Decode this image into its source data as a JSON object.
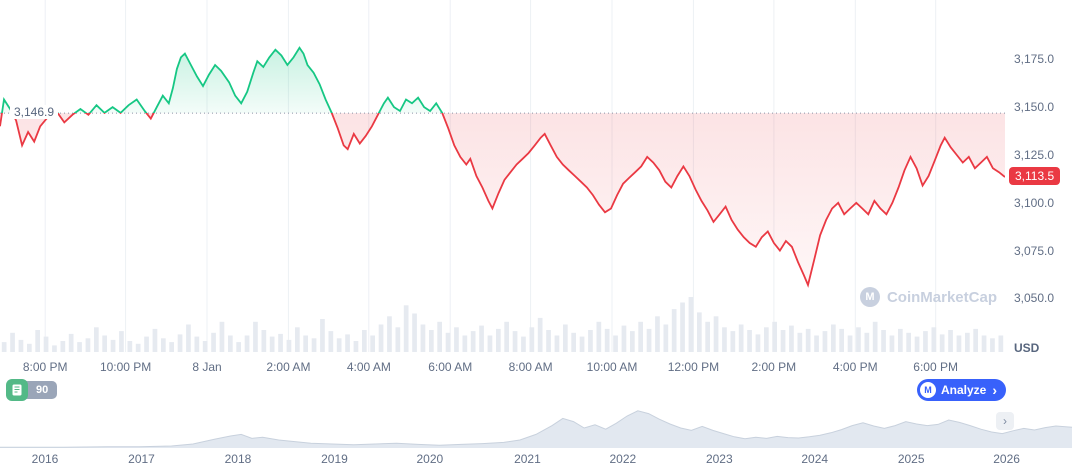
{
  "branding": {
    "watermark": "CoinMarketCap",
    "logo_letter": "M"
  },
  "toolbar": {
    "badge_count": "90",
    "analyze_label": "Analyze",
    "chevron": "›",
    "expand_glyph": "›"
  },
  "chart_data": {
    "type": "line",
    "title": "",
    "unit_label": "USD",
    "baseline": 3146.9,
    "baseline_label": "3,146.9",
    "current": 3113.5,
    "current_label": "3,113.5",
    "ylim": [
      3022,
      3206
    ],
    "grid": true,
    "y_ticks": [
      {
        "label": "3,175.0",
        "value": 3175
      },
      {
        "label": "3,150.0",
        "value": 3150
      },
      {
        "label": "3,125.0",
        "value": 3125
      },
      {
        "label": "3,100.0",
        "value": 3100
      },
      {
        "label": "3,075.0",
        "value": 3075
      },
      {
        "label": "3,050.0",
        "value": 3050
      }
    ],
    "x_ticks": [
      {
        "label": "8:00 PM",
        "f": 0.045
      },
      {
        "label": "10:00 PM",
        "f": 0.125
      },
      {
        "label": "8 Jan",
        "f": 0.206
      },
      {
        "label": "2:00 AM",
        "f": 0.287
      },
      {
        "label": "4:00 AM",
        "f": 0.367
      },
      {
        "label": "6:00 AM",
        "f": 0.448
      },
      {
        "label": "8:00 AM",
        "f": 0.528
      },
      {
        "label": "10:00 AM",
        "f": 0.609
      },
      {
        "label": "12:00 PM",
        "f": 0.69
      },
      {
        "label": "2:00 PM",
        "f": 0.77
      },
      {
        "label": "4:00 PM",
        "f": 0.851
      },
      {
        "label": "6:00 PM",
        "f": 0.931
      }
    ],
    "points": [
      [
        0.0,
        3140
      ],
      [
        0.004,
        3154
      ],
      [
        0.01,
        3149
      ],
      [
        0.016,
        3143
      ],
      [
        0.022,
        3130
      ],
      [
        0.028,
        3137
      ],
      [
        0.034,
        3132
      ],
      [
        0.04,
        3140
      ],
      [
        0.048,
        3145
      ],
      [
        0.056,
        3148
      ],
      [
        0.064,
        3142
      ],
      [
        0.072,
        3146
      ],
      [
        0.08,
        3149
      ],
      [
        0.088,
        3146
      ],
      [
        0.096,
        3151
      ],
      [
        0.104,
        3147
      ],
      [
        0.112,
        3150
      ],
      [
        0.12,
        3147
      ],
      [
        0.128,
        3151
      ],
      [
        0.136,
        3154
      ],
      [
        0.144,
        3148
      ],
      [
        0.15,
        3144
      ],
      [
        0.156,
        3150
      ],
      [
        0.162,
        3156
      ],
      [
        0.168,
        3152
      ],
      [
        0.172,
        3160
      ],
      [
        0.176,
        3170
      ],
      [
        0.18,
        3176
      ],
      [
        0.184,
        3178
      ],
      [
        0.19,
        3172
      ],
      [
        0.196,
        3166
      ],
      [
        0.202,
        3161
      ],
      [
        0.208,
        3167
      ],
      [
        0.214,
        3172
      ],
      [
        0.22,
        3169
      ],
      [
        0.228,
        3163
      ],
      [
        0.234,
        3156
      ],
      [
        0.24,
        3152
      ],
      [
        0.246,
        3158
      ],
      [
        0.252,
        3168
      ],
      [
        0.256,
        3174
      ],
      [
        0.262,
        3171
      ],
      [
        0.268,
        3176
      ],
      [
        0.274,
        3180
      ],
      [
        0.28,
        3177
      ],
      [
        0.286,
        3172
      ],
      [
        0.292,
        3176
      ],
      [
        0.298,
        3181
      ],
      [
        0.302,
        3178
      ],
      [
        0.306,
        3172
      ],
      [
        0.312,
        3168
      ],
      [
        0.318,
        3162
      ],
      [
        0.324,
        3154
      ],
      [
        0.33,
        3147
      ],
      [
        0.336,
        3139
      ],
      [
        0.342,
        3130
      ],
      [
        0.346,
        3128
      ],
      [
        0.352,
        3136
      ],
      [
        0.358,
        3131
      ],
      [
        0.364,
        3135
      ],
      [
        0.37,
        3140
      ],
      [
        0.376,
        3146
      ],
      [
        0.382,
        3152
      ],
      [
        0.386,
        3155
      ],
      [
        0.392,
        3150
      ],
      [
        0.398,
        3148
      ],
      [
        0.404,
        3154
      ],
      [
        0.41,
        3152
      ],
      [
        0.416,
        3155
      ],
      [
        0.422,
        3150
      ],
      [
        0.428,
        3148
      ],
      [
        0.434,
        3152
      ],
      [
        0.44,
        3147
      ],
      [
        0.446,
        3139
      ],
      [
        0.452,
        3130
      ],
      [
        0.458,
        3124
      ],
      [
        0.464,
        3120
      ],
      [
        0.468,
        3123
      ],
      [
        0.474,
        3114
      ],
      [
        0.48,
        3108
      ],
      [
        0.486,
        3101
      ],
      [
        0.49,
        3097
      ],
      [
        0.496,
        3105
      ],
      [
        0.502,
        3112
      ],
      [
        0.508,
        3116
      ],
      [
        0.514,
        3120
      ],
      [
        0.52,
        3123
      ],
      [
        0.526,
        3126
      ],
      [
        0.532,
        3130
      ],
      [
        0.538,
        3134
      ],
      [
        0.542,
        3136
      ],
      [
        0.548,
        3130
      ],
      [
        0.554,
        3124
      ],
      [
        0.56,
        3120
      ],
      [
        0.566,
        3117
      ],
      [
        0.572,
        3114
      ],
      [
        0.578,
        3111
      ],
      [
        0.584,
        3108
      ],
      [
        0.59,
        3104
      ],
      [
        0.596,
        3099
      ],
      [
        0.602,
        3095
      ],
      [
        0.608,
        3097
      ],
      [
        0.614,
        3104
      ],
      [
        0.62,
        3110
      ],
      [
        0.626,
        3113
      ],
      [
        0.632,
        3116
      ],
      [
        0.638,
        3119
      ],
      [
        0.644,
        3124
      ],
      [
        0.65,
        3121
      ],
      [
        0.656,
        3117
      ],
      [
        0.662,
        3111
      ],
      [
        0.668,
        3108
      ],
      [
        0.674,
        3114
      ],
      [
        0.68,
        3119
      ],
      [
        0.686,
        3114
      ],
      [
        0.692,
        3107
      ],
      [
        0.698,
        3101
      ],
      [
        0.704,
        3096
      ],
      [
        0.71,
        3090
      ],
      [
        0.716,
        3094
      ],
      [
        0.722,
        3098
      ],
      [
        0.728,
        3091
      ],
      [
        0.734,
        3086
      ],
      [
        0.74,
        3082
      ],
      [
        0.746,
        3079
      ],
      [
        0.752,
        3077
      ],
      [
        0.758,
        3082
      ],
      [
        0.764,
        3085
      ],
      [
        0.77,
        3079
      ],
      [
        0.776,
        3075
      ],
      [
        0.782,
        3080
      ],
      [
        0.788,
        3077
      ],
      [
        0.794,
        3069
      ],
      [
        0.8,
        3062
      ],
      [
        0.804,
        3057
      ],
      [
        0.81,
        3070
      ],
      [
        0.816,
        3083
      ],
      [
        0.822,
        3091
      ],
      [
        0.828,
        3097
      ],
      [
        0.834,
        3100
      ],
      [
        0.84,
        3094
      ],
      [
        0.846,
        3097
      ],
      [
        0.852,
        3100
      ],
      [
        0.858,
        3097
      ],
      [
        0.864,
        3094
      ],
      [
        0.87,
        3101
      ],
      [
        0.876,
        3097
      ],
      [
        0.882,
        3094
      ],
      [
        0.888,
        3100
      ],
      [
        0.894,
        3108
      ],
      [
        0.9,
        3117
      ],
      [
        0.906,
        3124
      ],
      [
        0.912,
        3118
      ],
      [
        0.918,
        3109
      ],
      [
        0.924,
        3114
      ],
      [
        0.93,
        3122
      ],
      [
        0.936,
        3130
      ],
      [
        0.94,
        3134
      ],
      [
        0.946,
        3129
      ],
      [
        0.952,
        3125
      ],
      [
        0.958,
        3121
      ],
      [
        0.964,
        3124
      ],
      [
        0.97,
        3118
      ],
      [
        0.976,
        3121
      ],
      [
        0.982,
        3124
      ],
      [
        0.988,
        3118
      ],
      [
        0.994,
        3116
      ],
      [
        1.0,
        3113.5
      ]
    ],
    "volume": [
      0.18,
      0.35,
      0.22,
      0.15,
      0.4,
      0.28,
      0.12,
      0.2,
      0.33,
      0.18,
      0.25,
      0.45,
      0.3,
      0.22,
      0.38,
      0.2,
      0.15,
      0.28,
      0.42,
      0.25,
      0.18,
      0.32,
      0.5,
      0.28,
      0.2,
      0.35,
      0.55,
      0.3,
      0.18,
      0.3,
      0.55,
      0.4,
      0.28,
      0.33,
      0.22,
      0.45,
      0.3,
      0.25,
      0.6,
      0.38,
      0.25,
      0.32,
      0.2,
      0.4,
      0.3,
      0.5,
      0.65,
      0.45,
      0.85,
      0.7,
      0.5,
      0.4,
      0.55,
      0.35,
      0.45,
      0.3,
      0.38,
      0.48,
      0.3,
      0.42,
      0.55,
      0.38,
      0.28,
      0.45,
      0.62,
      0.4,
      0.3,
      0.5,
      0.35,
      0.28,
      0.4,
      0.55,
      0.42,
      0.3,
      0.48,
      0.38,
      0.55,
      0.42,
      0.65,
      0.5,
      0.78,
      0.9,
      1.0,
      0.72,
      0.55,
      0.65,
      0.45,
      0.38,
      0.5,
      0.4,
      0.32,
      0.45,
      0.55,
      0.4,
      0.48,
      0.35,
      0.42,
      0.3,
      0.38,
      0.5,
      0.42,
      0.3,
      0.45,
      0.35,
      0.55,
      0.4,
      0.3,
      0.42,
      0.35,
      0.28,
      0.38,
      0.45,
      0.32,
      0.4,
      0.3,
      0.35,
      0.42,
      0.3,
      0.25,
      0.3
    ],
    "volume_max_height": 55,
    "navigator": {
      "years": [
        {
          "label": "2016",
          "f": 0.042
        },
        {
          "label": "2017",
          "f": 0.132
        },
        {
          "label": "2018",
          "f": 0.222
        },
        {
          "label": "2019",
          "f": 0.312
        },
        {
          "label": "2020",
          "f": 0.401
        },
        {
          "label": "2021",
          "f": 0.492
        },
        {
          "label": "2022",
          "f": 0.581
        },
        {
          "label": "2023",
          "f": 0.671
        },
        {
          "label": "2024",
          "f": 0.76
        },
        {
          "label": "2025",
          "f": 0.85
        },
        {
          "label": "2026",
          "f": 0.939
        }
      ],
      "points": [
        [
          0,
          0.02
        ],
        [
          0.06,
          0.02
        ],
        [
          0.1,
          0.03
        ],
        [
          0.13,
          0.03
        ],
        [
          0.16,
          0.05
        ],
        [
          0.18,
          0.1
        ],
        [
          0.2,
          0.22
        ],
        [
          0.215,
          0.3
        ],
        [
          0.225,
          0.34
        ],
        [
          0.235,
          0.24
        ],
        [
          0.245,
          0.27
        ],
        [
          0.26,
          0.2
        ],
        [
          0.275,
          0.16
        ],
        [
          0.29,
          0.12
        ],
        [
          0.31,
          0.1
        ],
        [
          0.33,
          0.08
        ],
        [
          0.35,
          0.1
        ],
        [
          0.37,
          0.12
        ],
        [
          0.39,
          0.09
        ],
        [
          0.41,
          0.07
        ],
        [
          0.43,
          0.09
        ],
        [
          0.45,
          0.11
        ],
        [
          0.47,
          0.14
        ],
        [
          0.485,
          0.2
        ],
        [
          0.5,
          0.34
        ],
        [
          0.515,
          0.56
        ],
        [
          0.525,
          0.74
        ],
        [
          0.535,
          0.66
        ],
        [
          0.545,
          0.5
        ],
        [
          0.555,
          0.58
        ],
        [
          0.565,
          0.47
        ],
        [
          0.575,
          0.62
        ],
        [
          0.585,
          0.8
        ],
        [
          0.595,
          0.93
        ],
        [
          0.605,
          0.86
        ],
        [
          0.615,
          0.72
        ],
        [
          0.625,
          0.6
        ],
        [
          0.635,
          0.5
        ],
        [
          0.645,
          0.44
        ],
        [
          0.655,
          0.54
        ],
        [
          0.665,
          0.44
        ],
        [
          0.675,
          0.36
        ],
        [
          0.685,
          0.28
        ],
        [
          0.695,
          0.23
        ],
        [
          0.705,
          0.27
        ],
        [
          0.715,
          0.24
        ],
        [
          0.725,
          0.29
        ],
        [
          0.735,
          0.26
        ],
        [
          0.745,
          0.25
        ],
        [
          0.755,
          0.28
        ],
        [
          0.765,
          0.32
        ],
        [
          0.775,
          0.38
        ],
        [
          0.785,
          0.46
        ],
        [
          0.795,
          0.56
        ],
        [
          0.805,
          0.63
        ],
        [
          0.815,
          0.55
        ],
        [
          0.825,
          0.49
        ],
        [
          0.835,
          0.56
        ],
        [
          0.845,
          0.66
        ],
        [
          0.855,
          0.6
        ],
        [
          0.865,
          0.56
        ],
        [
          0.875,
          0.59
        ],
        [
          0.885,
          0.7
        ],
        [
          0.895,
          0.64
        ],
        [
          0.905,
          0.56
        ],
        [
          0.915,
          0.47
        ],
        [
          0.925,
          0.4
        ],
        [
          0.935,
          0.36
        ],
        [
          0.945,
          0.43
        ],
        [
          0.955,
          0.49
        ],
        [
          0.965,
          0.45
        ],
        [
          0.975,
          0.51
        ],
        [
          0.985,
          0.55
        ],
        [
          1.0,
          0.52
        ]
      ]
    },
    "colors": {
      "up": "#16c784",
      "down": "#ea3943",
      "grid": "#edf0f4",
      "baseline_dots": "#8a94a6",
      "axis_text": "#616e85",
      "volume": "#e6eaf0",
      "badge": "#ea3943",
      "analyze": "#3861fb",
      "nav_fill": "#e2e8f0",
      "nav_stroke": "#c8d1dd"
    }
  }
}
